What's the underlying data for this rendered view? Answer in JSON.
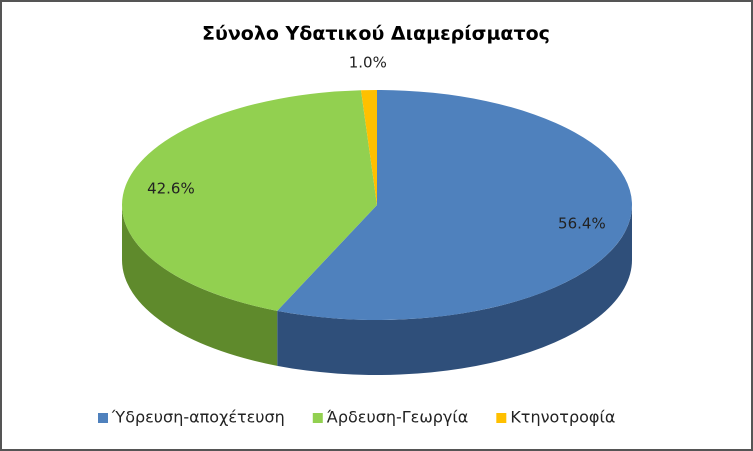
{
  "chart_data": {
    "type": "pie",
    "title": "Σύνολο Υδατικού Διαμερίσματος",
    "categories": [
      "Ύδρευση-αποχέτευση",
      "Άρδευση-Γεωργία",
      "Κτηνοτροφία"
    ],
    "values": [
      56.4,
      42.6,
      1.0
    ],
    "value_labels": [
      "56.4%",
      "42.6%",
      "1.0%"
    ],
    "colors": [
      "#4f81bd",
      "#92d050",
      "#ffc000"
    ],
    "side_colors": [
      "#2f4f7a",
      "#5f8a2c",
      "#b38600"
    ],
    "legend": "bottom"
  }
}
